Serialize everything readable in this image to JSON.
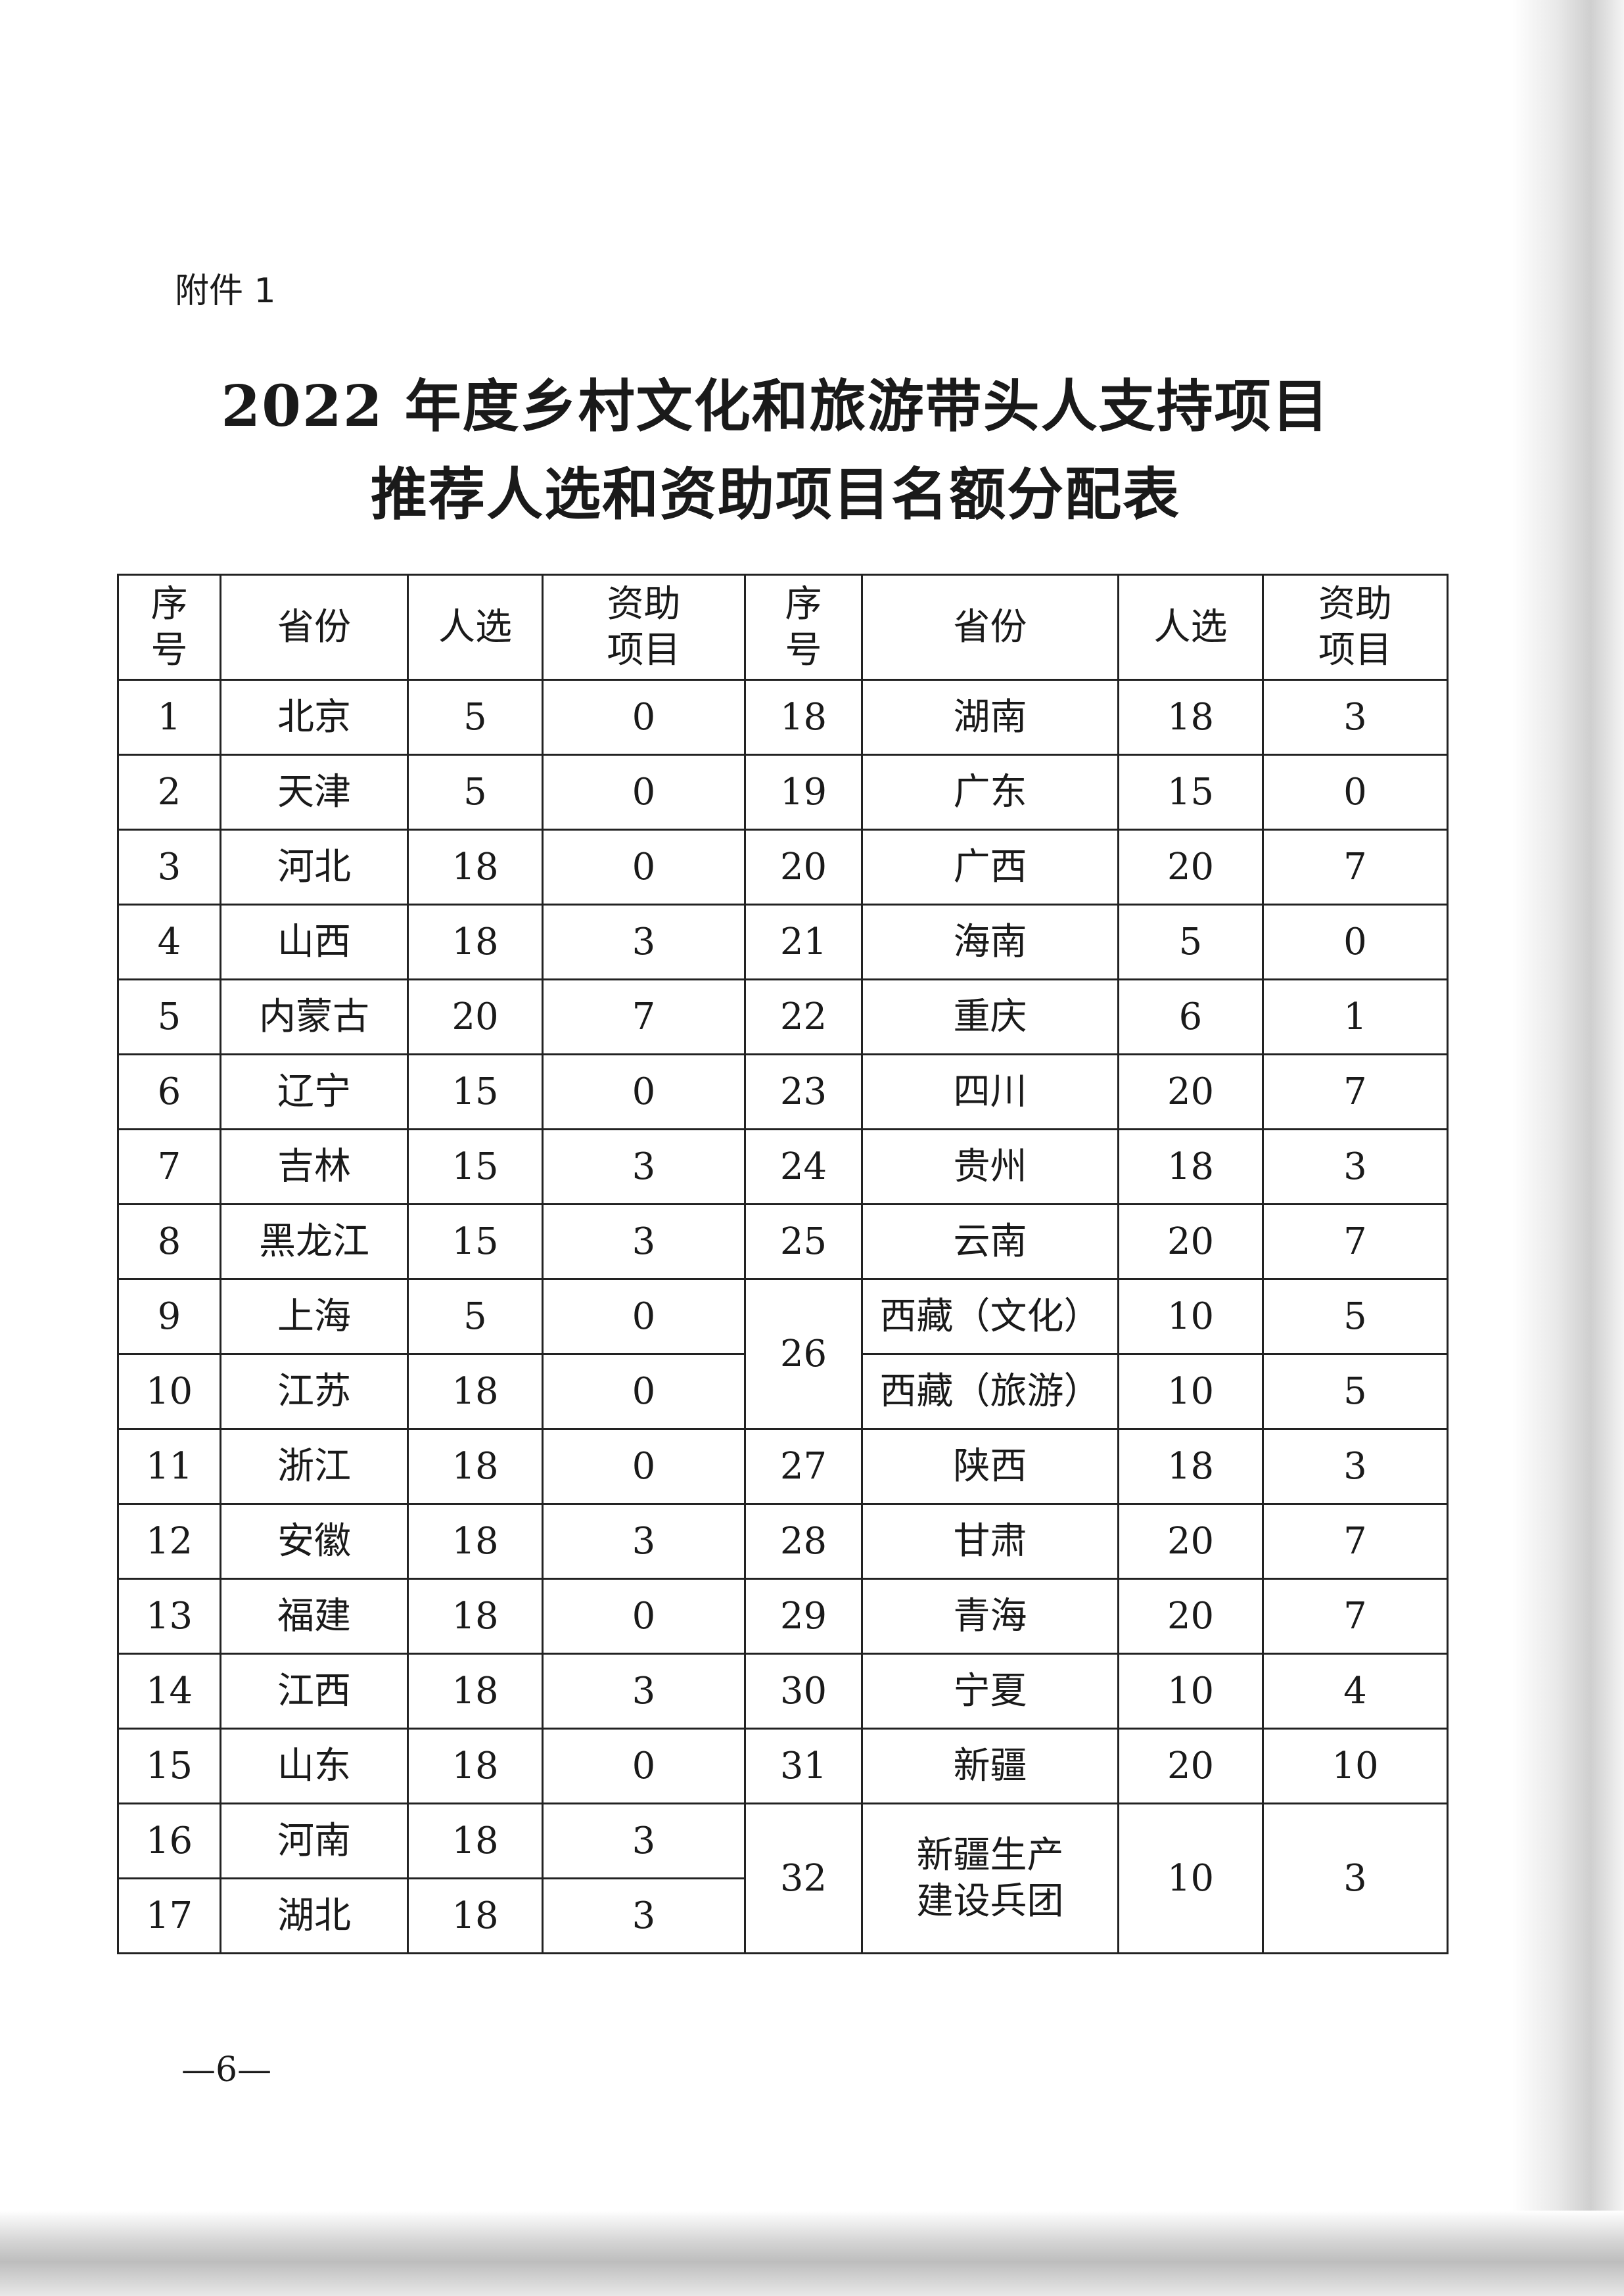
{
  "attachment_label": "附件 1",
  "title_line1": "2022 年度乡村文化和旅游带头人支持项目",
  "title_line2": "推荐人选和资助项目名额分配表",
  "headers": {
    "seq": "序号",
    "province": "省份",
    "candidates": "人选",
    "funded": "资助项目"
  },
  "left": [
    {
      "seq": "1",
      "province": "北京",
      "candidates": "5",
      "funded": "0"
    },
    {
      "seq": "2",
      "province": "天津",
      "candidates": "5",
      "funded": "0"
    },
    {
      "seq": "3",
      "province": "河北",
      "candidates": "18",
      "funded": "0"
    },
    {
      "seq": "4",
      "province": "山西",
      "candidates": "18",
      "funded": "3"
    },
    {
      "seq": "5",
      "province": "内蒙古",
      "candidates": "20",
      "funded": "7"
    },
    {
      "seq": "6",
      "province": "辽宁",
      "candidates": "15",
      "funded": "0"
    },
    {
      "seq": "7",
      "province": "吉林",
      "candidates": "15",
      "funded": "3"
    },
    {
      "seq": "8",
      "province": "黑龙江",
      "candidates": "15",
      "funded": "3"
    },
    {
      "seq": "9",
      "province": "上海",
      "candidates": "5",
      "funded": "0"
    },
    {
      "seq": "10",
      "province": "江苏",
      "candidates": "18",
      "funded": "0"
    },
    {
      "seq": "11",
      "province": "浙江",
      "candidates": "18",
      "funded": "0"
    },
    {
      "seq": "12",
      "province": "安徽",
      "candidates": "18",
      "funded": "3"
    },
    {
      "seq": "13",
      "province": "福建",
      "candidates": "18",
      "funded": "0"
    },
    {
      "seq": "14",
      "province": "江西",
      "candidates": "18",
      "funded": "3"
    },
    {
      "seq": "15",
      "province": "山东",
      "candidates": "18",
      "funded": "0"
    },
    {
      "seq": "16",
      "province": "河南",
      "candidates": "18",
      "funded": "3"
    },
    {
      "seq": "17",
      "province": "湖北",
      "candidates": "18",
      "funded": "3"
    }
  ],
  "right": [
    {
      "seq": "18",
      "province": "湖南",
      "candidates": "18",
      "funded": "3"
    },
    {
      "seq": "19",
      "province": "广东",
      "candidates": "15",
      "funded": "0"
    },
    {
      "seq": "20",
      "province": "广西",
      "candidates": "20",
      "funded": "7"
    },
    {
      "seq": "21",
      "province": "海南",
      "candidates": "5",
      "funded": "0"
    },
    {
      "seq": "22",
      "province": "重庆",
      "candidates": "6",
      "funded": "1"
    },
    {
      "seq": "23",
      "province": "四川",
      "candidates": "20",
      "funded": "7"
    },
    {
      "seq": "24",
      "province": "贵州",
      "candidates": "18",
      "funded": "3"
    },
    {
      "seq": "25",
      "province": "云南",
      "candidates": "20",
      "funded": "7"
    },
    {
      "seq": "26",
      "province": "西藏（文化）",
      "candidates": "10",
      "funded": "5"
    },
    {
      "seq": "",
      "province": "西藏（旅游）",
      "candidates": "10",
      "funded": "5"
    },
    {
      "seq": "27",
      "province": "陕西",
      "candidates": "18",
      "funded": "3"
    },
    {
      "seq": "28",
      "province": "甘肃",
      "candidates": "20",
      "funded": "7"
    },
    {
      "seq": "29",
      "province": "青海",
      "candidates": "20",
      "funded": "7"
    },
    {
      "seq": "30",
      "province": "宁夏",
      "candidates": "10",
      "funded": "4"
    },
    {
      "seq": "31",
      "province": "新疆",
      "candidates": "20",
      "funded": "10"
    },
    {
      "seq": "32",
      "province": "新疆生产建设兵团",
      "candidates": "10",
      "funded": "3"
    }
  ],
  "page_number": "—6—"
}
